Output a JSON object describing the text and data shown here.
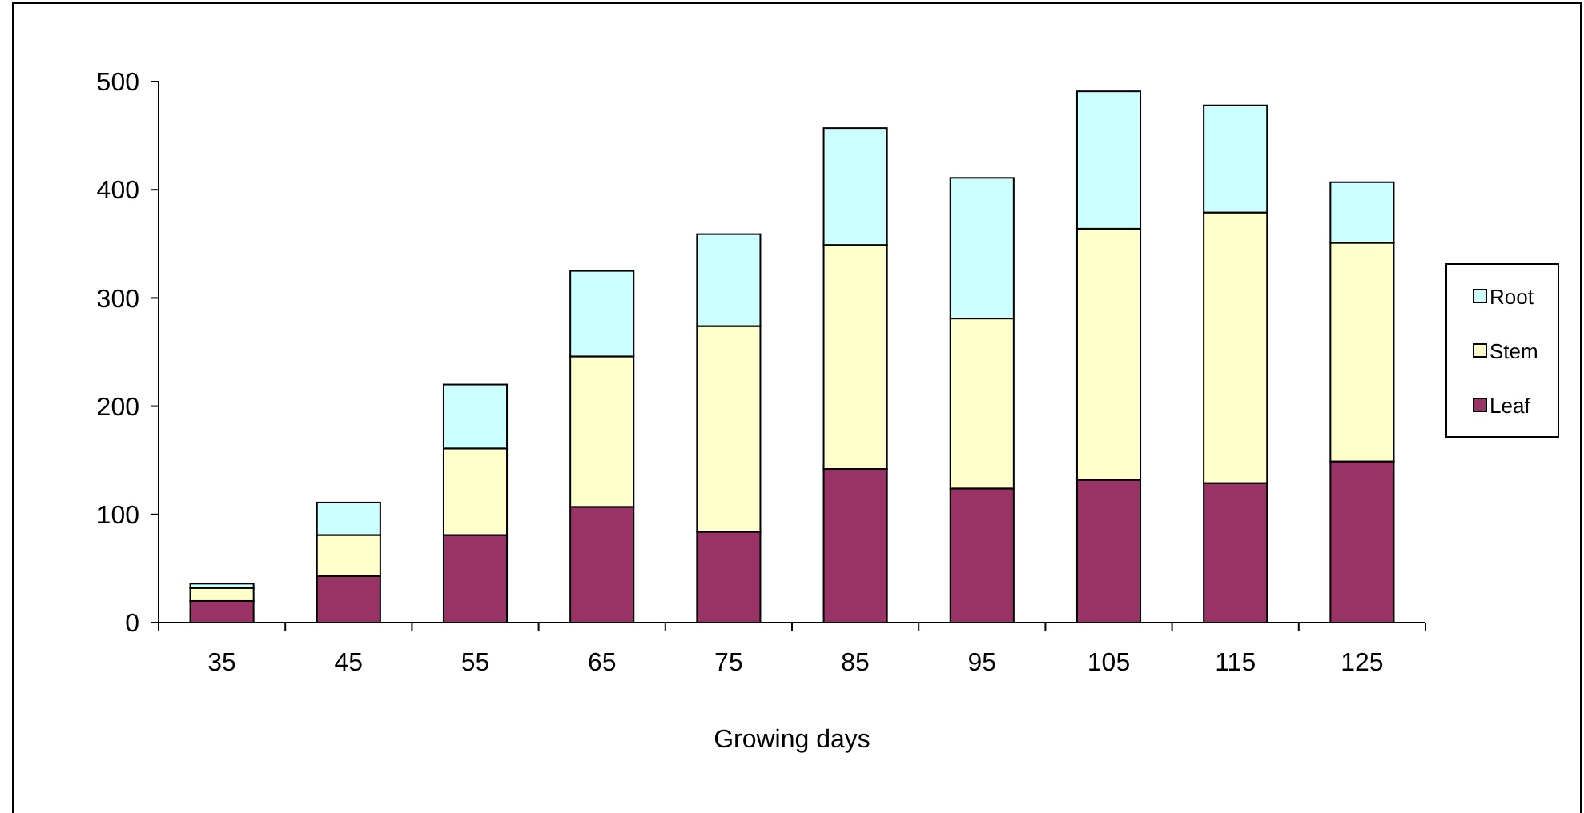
{
  "chart_data": {
    "type": "bar",
    "stacked": true,
    "xlabel": "Growing days",
    "categories": [
      "35",
      "45",
      "55",
      "65",
      "75",
      "85",
      "95",
      "105",
      "115",
      "125"
    ],
    "series": [
      {
        "name": "Leaf",
        "color": "#993366",
        "values": [
          20,
          43,
          81,
          107,
          84,
          142,
          124,
          132,
          129,
          149
        ]
      },
      {
        "name": "Stem",
        "color": "#ffffcc",
        "values": [
          12,
          38,
          80,
          139,
          190,
          207,
          157,
          232,
          250,
          202
        ]
      },
      {
        "name": "Root",
        "color": "#ccffff",
        "values": [
          4,
          30,
          59,
          79,
          85,
          108,
          130,
          127,
          99,
          56
        ]
      }
    ],
    "ylim": [
      0,
      500
    ],
    "yticks": [
      0,
      100,
      200,
      300,
      400,
      500
    ],
    "grid": false,
    "legend": "right"
  }
}
